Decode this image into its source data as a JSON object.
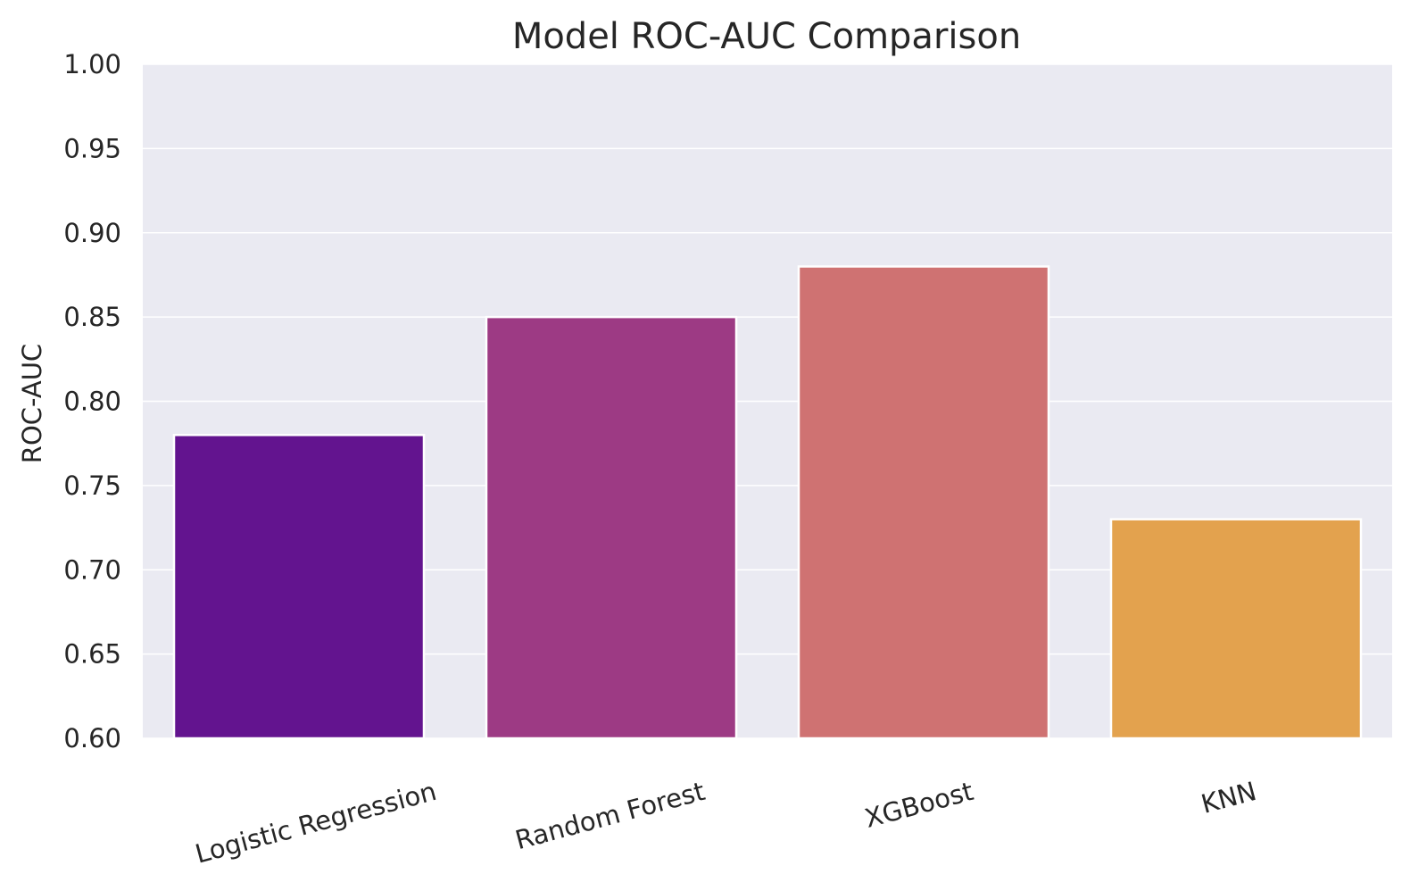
{
  "chart_data": {
    "type": "bar",
    "title": "Model ROC-AUC Comparison",
    "xlabel": "",
    "ylabel": "ROC-AUC",
    "categories": [
      "Logistic Regression",
      "Random Forest",
      "XGBoost",
      "KNN"
    ],
    "values": [
      0.78,
      0.85,
      0.88,
      0.73
    ],
    "colors": [
      "#63148f",
      "#9d3a84",
      "#cf7272",
      "#e3a24e"
    ],
    "ylim": [
      0.6,
      1.0
    ],
    "yticks": [
      0.6,
      0.65,
      0.7,
      0.75,
      0.8,
      0.85,
      0.9,
      0.95,
      1.0
    ],
    "ytick_labels": [
      "0.60",
      "0.65",
      "0.70",
      "0.75",
      "0.80",
      "0.85",
      "0.90",
      "0.95",
      "1.00"
    ],
    "grid": true,
    "background": "#eaeaf2"
  }
}
